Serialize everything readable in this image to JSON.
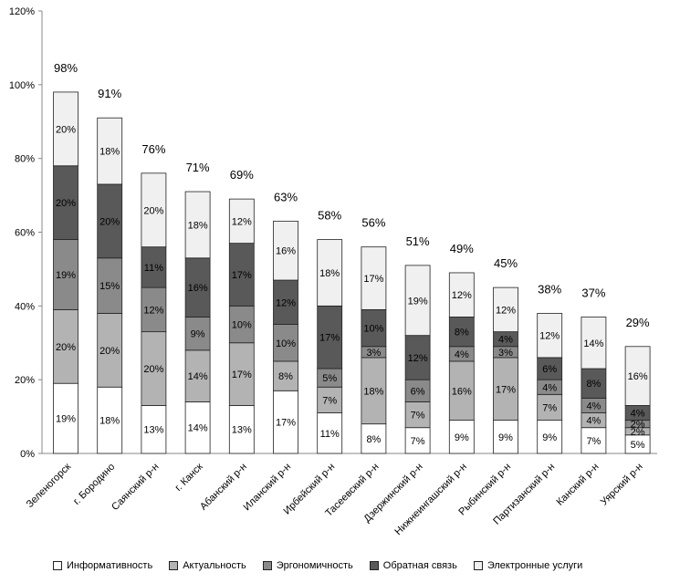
{
  "chart_data": {
    "type": "bar",
    "stacked": true,
    "title": "",
    "xlabel": "",
    "ylabel": "",
    "ylim": [
      0,
      120
    ],
    "y_ticks": [
      "0%",
      "20%",
      "40%",
      "60%",
      "80%",
      "100%",
      "120%"
    ],
    "grid": false,
    "legend_position": "bottom",
    "categories": [
      "Зеленогорск",
      "г. Бородино",
      "Саянский р-н",
      "г. Канск",
      "Абанский р-н",
      "Иланский р-н",
      "Ирбейский р-н",
      "Тасеевский р-н",
      "Дзержинский р-н",
      "Нижнеингашский р-н",
      "Рыбинский р-н",
      "Партизанский р-н",
      "Канский р-н",
      "Уярский р-н"
    ],
    "totals": [
      98,
      91,
      76,
      71,
      69,
      63,
      58,
      56,
      51,
      49,
      45,
      38,
      37,
      29
    ],
    "total_labels": [
      "98%",
      "91%",
      "76%",
      "71%",
      "69%",
      "63%",
      "58%",
      "56%",
      "51%",
      "49%",
      "45%",
      "38%",
      "37%",
      "29%"
    ],
    "series": [
      {
        "name": "Информативность",
        "color": "#ffffff",
        "label_color": "#000000",
        "values": [
          19,
          18,
          13,
          14,
          13,
          17,
          11,
          8,
          7,
          9,
          9,
          9,
          7,
          5
        ],
        "labels": [
          "19%",
          "18%",
          "13%",
          "14%",
          "13%",
          "17%",
          "11%",
          "8%",
          "7%",
          "9%",
          "9%",
          "9%",
          "7%",
          "5%"
        ]
      },
      {
        "name": "Актуальность",
        "color": "#b3b3b3",
        "label_color": "#000000",
        "values": [
          20,
          20,
          20,
          14,
          17,
          8,
          7,
          18,
          7,
          16,
          17,
          7,
          4,
          2
        ],
        "labels": [
          "20%",
          "20%",
          "20%",
          "14%",
          "17%",
          "8%",
          "7%",
          "18%",
          "7%",
          "16%",
          "17%",
          "7%",
          "4%",
          "2%"
        ]
      },
      {
        "name": "Эргономичность",
        "color": "#8a8a8a",
        "label_color": "#000000",
        "values": [
          19,
          15,
          12,
          9,
          10,
          10,
          5,
          3,
          6,
          4,
          3,
          4,
          4,
          2
        ],
        "labels": [
          "19%",
          "15%",
          "12%",
          "9%",
          "10%",
          "10%",
          "5%",
          "3%",
          "6%",
          "4%",
          "3%",
          "4%",
          "4%",
          "2%"
        ]
      },
      {
        "name": "Обратная связь",
        "color": "#595959",
        "label_color": "#000000",
        "values": [
          20,
          20,
          11,
          16,
          17,
          12,
          17,
          10,
          12,
          8,
          4,
          6,
          8,
          4
        ],
        "labels": [
          "20%",
          "20%",
          "11%",
          "16%",
          "17%",
          "12%",
          "17%",
          "10%",
          "12%",
          "8%",
          "4%",
          "6%",
          "8%",
          "4%"
        ]
      },
      {
        "name": "Электронные услуги",
        "color": "#f0f0f0",
        "label_color": "#000000",
        "values": [
          20,
          18,
          20,
          18,
          12,
          16,
          18,
          17,
          19,
          12,
          12,
          12,
          14,
          16
        ],
        "labels": [
          "20%",
          "18%",
          "20%",
          "18%",
          "12%",
          "16%",
          "18%",
          "17%",
          "19%",
          "12%",
          "12%",
          "12%",
          "14%",
          "16%"
        ]
      }
    ]
  }
}
